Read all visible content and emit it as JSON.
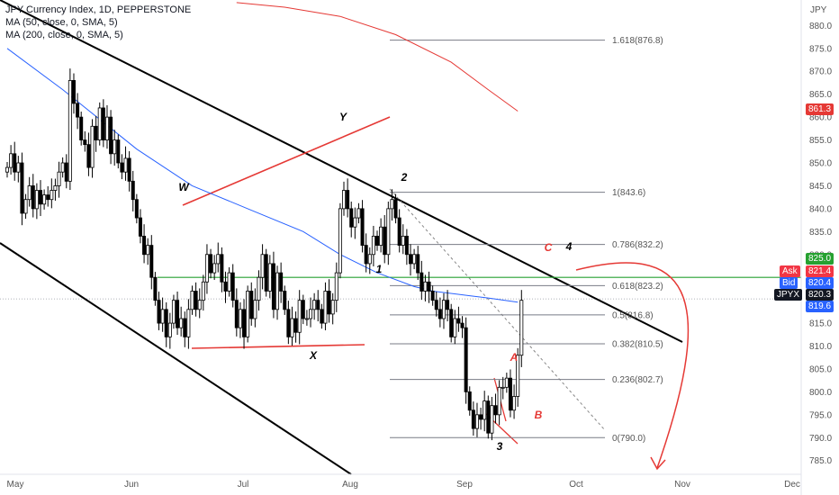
{
  "header": {
    "line1": "JPY Currency Index, 1D, PEPPERSTONE",
    "line2": "MA (50, close, 0, SMA, 5)",
    "line3": "MA (200, close, 0, SMA, 5)"
  },
  "axis": {
    "unit": "JPY",
    "y_ticks": [
      "880.0",
      "875.0",
      "870.0",
      "865.0",
      "860.0",
      "855.0",
      "850.0",
      "845.0",
      "840.0",
      "835.0",
      "830.0",
      "825.0",
      "820.0",
      "815.0",
      "810.0",
      "805.0",
      "800.0",
      "795.0",
      "790.0",
      "785.0"
    ],
    "x_ticks": [
      "May",
      "Jun",
      "Jul",
      "Aug",
      "Sep",
      "Oct",
      "Nov",
      "Dec"
    ]
  },
  "price_tags": {
    "ma200": "861.3",
    "level": "825.0",
    "ask_label": "Ask",
    "ask": "821.4",
    "bid_label": "Bid",
    "bid": "820.4",
    "symbol": "JPYX",
    "last": "820.3",
    "ma50": "819.6"
  },
  "fib_levels": [
    {
      "label": "1.618(876.8)",
      "value": 876.8
    },
    {
      "label": "1(843.6)",
      "value": 843.6
    },
    {
      "label": "0.786(832.2)",
      "value": 832.2
    },
    {
      "label": "0.618(823.2)",
      "value": 823.2
    },
    {
      "label": "0.5(816.8)",
      "value": 816.8
    },
    {
      "label": "0.382(810.5)",
      "value": 810.5
    },
    {
      "label": "0.236(802.7)",
      "value": 802.7
    },
    {
      "label": "0(790.0)",
      "value": 790.0
    }
  ],
  "wave_labels": [
    "W",
    "X",
    "Y",
    "1",
    "2",
    "3",
    "4",
    "A",
    "B",
    "C"
  ],
  "colors": {
    "up": "#ffffff",
    "down": "#000000",
    "ma50": "#2962ff",
    "ma200": "#e53935",
    "level_line": "#26a131",
    "ask_tag": "#f23645",
    "bid_tag": "#2962ff",
    "last_tag": "#131722"
  },
  "chart_data": {
    "type": "candlestick",
    "ylim": [
      782,
      884
    ],
    "y_unit": "JPY",
    "x_ticks": [
      "May",
      "Jun",
      "Jul",
      "Aug",
      "Sep",
      "Oct",
      "Nov",
      "Dec"
    ],
    "horizontal_level": 825.0,
    "candles_close": [
      849,
      852,
      848,
      850,
      839,
      842,
      845,
      840,
      844,
      841,
      843,
      842,
      844,
      845,
      848,
      850,
      846,
      868,
      863,
      860,
      855,
      854,
      849,
      858,
      855,
      862,
      855,
      860,
      852,
      855,
      850,
      848,
      851,
      846,
      842,
      838,
      834,
      830,
      832,
      825,
      820,
      815,
      818,
      812,
      815,
      820,
      814,
      816,
      812,
      818,
      822,
      818,
      820,
      824,
      830,
      826,
      828,
      830,
      824,
      822,
      826,
      820,
      814,
      818,
      812,
      822,
      816,
      820,
      825,
      830,
      822,
      828,
      818,
      826,
      822,
      818,
      812,
      816,
      813,
      820,
      816,
      816,
      818,
      820,
      818,
      815,
      822,
      817,
      820,
      826,
      840,
      844,
      840,
      836,
      838,
      840,
      832,
      828,
      830,
      834,
      832,
      836,
      830,
      840,
      842,
      838,
      832,
      834,
      830,
      828,
      830,
      826,
      822,
      824,
      822,
      820,
      818,
      816,
      820,
      818,
      812,
      816,
      815,
      814,
      800,
      796,
      792,
      795,
      794,
      798,
      791,
      797,
      795,
      801,
      801,
      803,
      796,
      799,
      808,
      820
    ],
    "series": [
      {
        "name": "MA (50, close, 0, SMA, 5)",
        "x_days": [
          0,
          15,
          35,
          50,
          65,
          80,
          90,
          100,
          110,
          115,
          125,
          130,
          138
        ],
        "y": [
          875,
          866,
          853,
          845,
          840,
          835,
          830,
          826,
          823,
          822,
          821,
          820.5,
          819.6
        ]
      },
      {
        "name": "MA (200, close, 0, SMA, 5)",
        "x_days": [
          62,
          75,
          90,
          105,
          120,
          130,
          138
        ],
        "y": [
          885,
          884,
          882,
          878,
          872,
          866,
          861.3
        ]
      }
    ],
    "fib_retracement": [
      876.8,
      843.6,
      832.2,
      823.2,
      816.8,
      810.5,
      802.7,
      790.0
    ]
  }
}
